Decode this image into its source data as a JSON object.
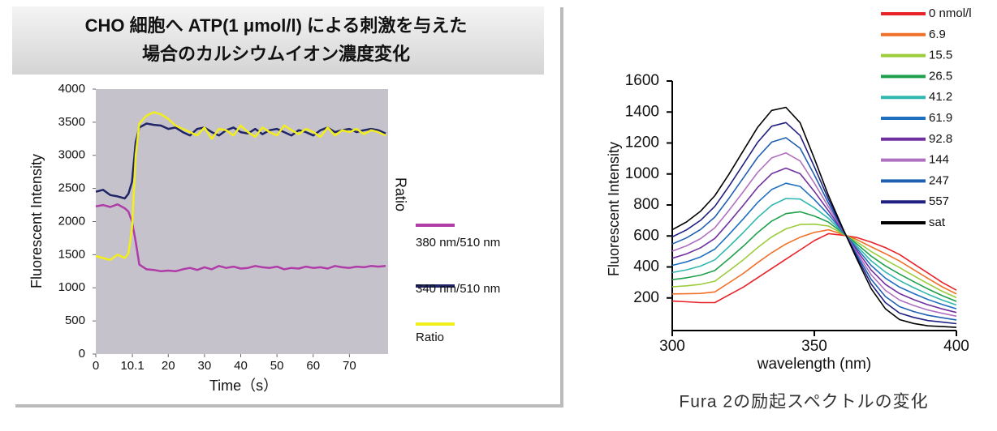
{
  "chart_data": [
    {
      "type": "line",
      "title_lines": [
        "CHO 細胞へ ATP(1 μmol/l) による刺激を与えた",
        "場合のカルシウムイオン濃度変化"
      ],
      "xlabel": "Time（s）",
      "ylabel": "Fluorescent Intensity",
      "y2label": "Ratio",
      "xlim": [
        0,
        80
      ],
      "xticks": [
        0,
        10.1,
        20,
        30,
        40,
        50,
        60,
        70
      ],
      "ylim": [
        0,
        4000
      ],
      "yticks": [
        0,
        500,
        1000,
        1500,
        2000,
        2500,
        3000,
        3500,
        4000
      ],
      "x": [
        0,
        2,
        4,
        6,
        8,
        9,
        10,
        11,
        12,
        14,
        16,
        18,
        20,
        22,
        24,
        26,
        28,
        30,
        32,
        34,
        36,
        38,
        40,
        42,
        44,
        46,
        48,
        50,
        52,
        54,
        56,
        58,
        60,
        62,
        64,
        66,
        68,
        70,
        72,
        74,
        76,
        78,
        80
      ],
      "series": [
        {
          "name": "380 nm/510 nm",
          "color": "#b03ca8",
          "values": [
            2230,
            2250,
            2220,
            2260,
            2200,
            2150,
            2000,
            1700,
            1350,
            1280,
            1270,
            1250,
            1260,
            1250,
            1280,
            1300,
            1270,
            1310,
            1280,
            1330,
            1300,
            1320,
            1290,
            1300,
            1330,
            1310,
            1300,
            1320,
            1280,
            1300,
            1290,
            1320,
            1300,
            1310,
            1290,
            1330,
            1310,
            1300,
            1320,
            1310,
            1330,
            1320,
            1330
          ]
        },
        {
          "name": "340 nm/510 nm",
          "color": "#1e2466",
          "values": [
            2450,
            2480,
            2400,
            2380,
            2350,
            2420,
            2600,
            3200,
            3420,
            3480,
            3460,
            3450,
            3400,
            3420,
            3350,
            3300,
            3400,
            3420,
            3350,
            3300,
            3380,
            3420,
            3350,
            3330,
            3400,
            3320,
            3380,
            3400,
            3350,
            3300,
            3380,
            3350,
            3300,
            3380,
            3420,
            3350,
            3380,
            3400,
            3350,
            3380,
            3400,
            3380,
            3330
          ]
        },
        {
          "name": "Ratio",
          "color": "#f2ee1c",
          "values": [
            1480,
            1450,
            1420,
            1500,
            1450,
            1520,
            1900,
            3000,
            3480,
            3600,
            3650,
            3620,
            3550,
            3450,
            3400,
            3350,
            3300,
            3420,
            3250,
            3400,
            3380,
            3300,
            3450,
            3350,
            3280,
            3420,
            3350,
            3300,
            3450,
            3380,
            3320,
            3400,
            3350,
            3280,
            3420,
            3300,
            3380,
            3350,
            3400,
            3320,
            3380,
            3350,
            3300
          ]
        }
      ]
    },
    {
      "type": "line",
      "xlabel": "wavelength (nm)",
      "ylabel": "Fluorescent Intensity",
      "caption": "Fura 2の励起スペクトルの変化",
      "xlim": [
        300,
        400
      ],
      "xticks": [
        300,
        350,
        400
      ],
      "ylim": [
        0,
        1600
      ],
      "yticks": [
        200,
        400,
        600,
        800,
        1000,
        1200,
        1400,
        1600
      ],
      "x": [
        300,
        305,
        310,
        315,
        320,
        325,
        330,
        335,
        340,
        345,
        350,
        355,
        360,
        365,
        370,
        375,
        380,
        385,
        390,
        395,
        400
      ],
      "series": [
        {
          "name": "0 nmol/l",
          "color": "#e82228",
          "values": [
            180,
            175,
            170,
            170,
            220,
            270,
            330,
            390,
            450,
            510,
            570,
            615,
            605,
            590,
            560,
            525,
            480,
            420,
            360,
            300,
            250
          ]
        },
        {
          "name": "6.9",
          "color": "#f07028",
          "values": [
            226,
            227,
            229,
            239,
            298,
            358,
            427,
            492,
            548,
            592,
            623,
            640,
            610,
            576,
            530,
            486,
            438,
            382,
            326,
            272,
            226
          ]
        },
        {
          "name": "15.5",
          "color": "#9ccc3c",
          "values": [
            272,
            278,
            288,
            308,
            376,
            446,
            524,
            594,
            646,
            674,
            676,
            664,
            614,
            562,
            500,
            446,
            396,
            343,
            292,
            243,
            202
          ]
        },
        {
          "name": "26.5",
          "color": "#1fa04c",
          "values": [
            318,
            330,
            347,
            377,
            454,
            534,
            621,
            696,
            744,
            756,
            729,
            689,
            619,
            548,
            470,
            407,
            354,
            305,
            258,
            215,
            178
          ]
        },
        {
          "name": "41.2",
          "color": "#30b8b0",
          "values": [
            364,
            381,
            406,
            446,
            532,
            622,
            718,
            798,
            842,
            838,
            782,
            713,
            623,
            534,
            440,
            367,
            312,
            266,
            224,
            186,
            154
          ]
        },
        {
          "name": "61.9",
          "color": "#1f6fc0",
          "values": [
            410,
            433,
            465,
            515,
            610,
            710,
            815,
            900,
            940,
            920,
            835,
            738,
            628,
            520,
            410,
            328,
            270,
            228,
            190,
            158,
            130
          ]
        },
        {
          "name": "92.8",
          "color": "#7030a0",
          "values": [
            456,
            484,
            524,
            584,
            688,
            798,
            912,
            1002,
            1038,
            1002,
            888,
            762,
            632,
            506,
            380,
            288,
            228,
            189,
            156,
            129,
            106
          ]
        },
        {
          "name": "144",
          "color": "#b070c0",
          "values": [
            502,
            536,
            583,
            653,
            766,
            886,
            1009,
            1104,
            1136,
            1084,
            941,
            787,
            637,
            492,
            350,
            249,
            186,
            151,
            122,
            101,
            82
          ]
        },
        {
          "name": "247",
          "color": "#2060b0",
          "values": [
            548,
            587,
            642,
            722,
            844,
            974,
            1106,
            1206,
            1234,
            1166,
            994,
            811,
            641,
            478,
            320,
            209,
            144,
            112,
            88,
            72,
            58
          ]
        },
        {
          "name": "557",
          "color": "#202080",
          "values": [
            594,
            639,
            701,
            791,
            922,
            1062,
            1203,
            1308,
            1332,
            1248,
            1047,
            836,
            646,
            464,
            290,
            170,
            102,
            74,
            54,
            44,
            34
          ]
        },
        {
          "name": "sat",
          "color": "#000000",
          "values": [
            640,
            690,
            760,
            860,
            1000,
            1150,
            1300,
            1410,
            1430,
            1330,
            1100,
            860,
            650,
            450,
            260,
            130,
            60,
            35,
            20,
            15,
            10
          ]
        }
      ]
    }
  ]
}
